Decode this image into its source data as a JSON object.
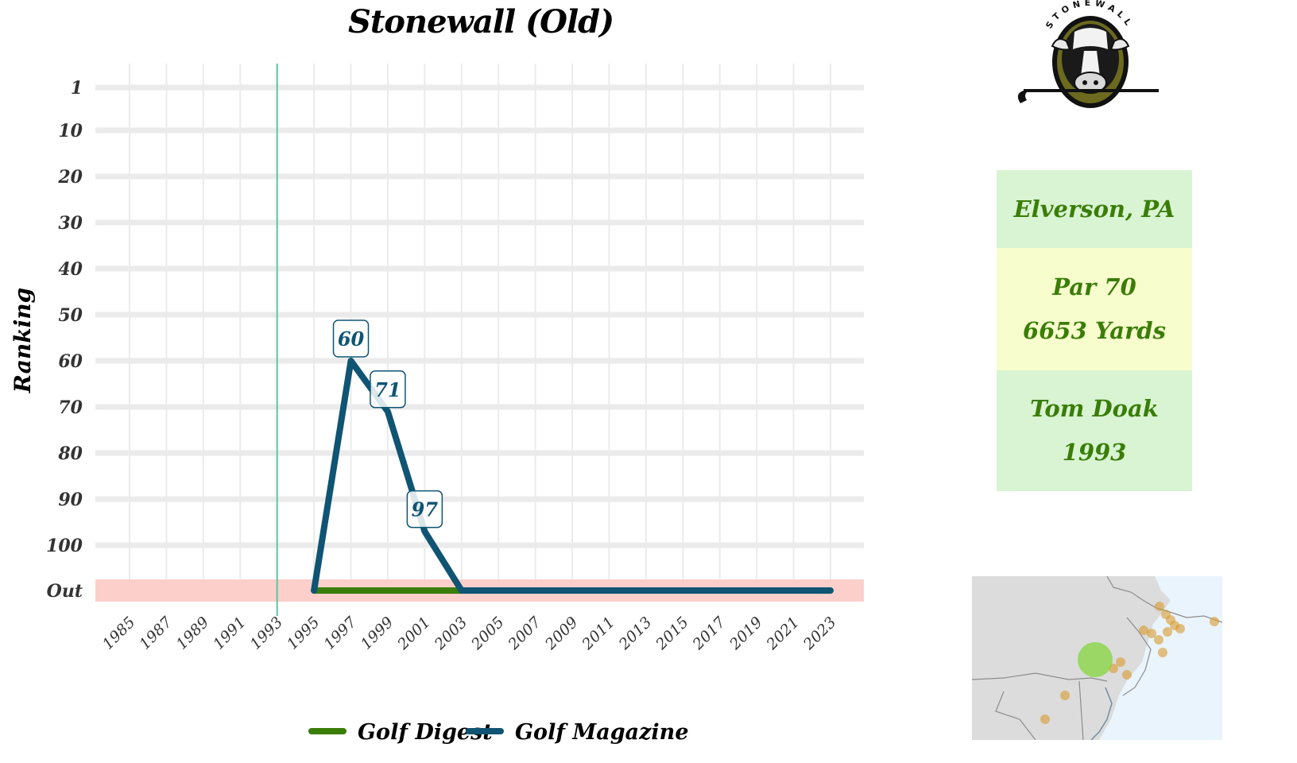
{
  "chart_data": {
    "type": "line",
    "title": "Stonewall (Old)",
    "ylabel": "Ranking",
    "xlabel": "",
    "x_ticks": [
      "1985",
      "1987",
      "1989",
      "1991",
      "1993",
      "1995",
      "1997",
      "1999",
      "2001",
      "2003",
      "2005",
      "2007",
      "2009",
      "2011",
      "2013",
      "2015",
      "2017",
      "2019",
      "2021",
      "2023"
    ],
    "y_ticks": [
      "1",
      "10",
      "20",
      "30",
      "40",
      "50",
      "60",
      "70",
      "80",
      "90",
      "100",
      "Out"
    ],
    "ylim": [
      1,
      110
    ],
    "out_value": 110,
    "opened_marker_year": 1993,
    "series": [
      {
        "name": "Golf Digest",
        "color": "#3a7d08",
        "points": [
          [
            1995,
            "Out"
          ],
          [
            1997,
            "Out"
          ],
          [
            1999,
            "Out"
          ],
          [
            2001,
            "Out"
          ],
          [
            2003,
            "Out"
          ]
        ]
      },
      {
        "name": "Golf Magazine",
        "color": "#0f5473",
        "points": [
          [
            1995,
            "Out"
          ],
          [
            1997,
            60
          ],
          [
            1999,
            71
          ],
          [
            2001,
            97
          ],
          [
            2003,
            "Out"
          ],
          [
            2005,
            "Out"
          ],
          [
            2007,
            "Out"
          ],
          [
            2009,
            "Out"
          ],
          [
            2011,
            "Out"
          ],
          [
            2013,
            "Out"
          ],
          [
            2015,
            "Out"
          ],
          [
            2017,
            "Out"
          ],
          [
            2019,
            "Out"
          ],
          [
            2021,
            "Out"
          ],
          [
            2023,
            "Out"
          ]
        ]
      }
    ],
    "data_labels": [
      {
        "x": 1997,
        "y": 60,
        "text": "60"
      },
      {
        "x": 1999,
        "y": 71,
        "text": "71"
      },
      {
        "x": 2001,
        "y": 97,
        "text": "97"
      }
    ],
    "grid": true,
    "legend_position": "bottom"
  },
  "info": {
    "location": "Elverson, PA",
    "par": "Par 70",
    "yards": "6653 Yards",
    "architect": "Tom Doak",
    "year": "1993"
  },
  "logo": {
    "text": "STONEWALL"
  },
  "colors": {
    "golf_digest": "#3a7d08",
    "golf_magazine": "#0f5473",
    "out_band": "#fccfca",
    "opened_line": "#5cc7a0",
    "grid": "#ebebeb",
    "info_green": "#d8f4d2",
    "info_yellow": "#f7fdcc",
    "info_text": "#3a7d08"
  }
}
